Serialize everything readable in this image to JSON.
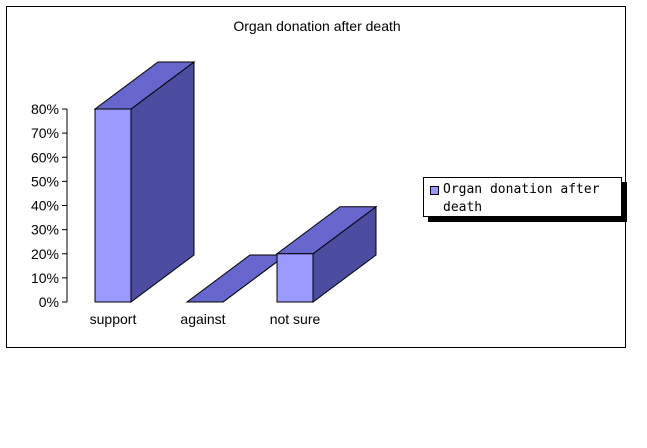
{
  "chart_data": {
    "type": "bar",
    "title": "Organ donation after death",
    "categories": [
      "support",
      "against",
      "not sure"
    ],
    "series": [
      {
        "name": "Organ donation after death",
        "values": [
          80,
          0,
          20
        ]
      }
    ],
    "ylim": [
      0,
      80
    ],
    "y_ticks": [
      "0%",
      "10%",
      "20%",
      "30%",
      "40%",
      "50%",
      "60%",
      "70%",
      "80%"
    ],
    "y_tick_values": [
      0,
      10,
      20,
      30,
      40,
      50,
      60,
      70,
      80
    ],
    "style": "3d-column",
    "grid": false,
    "legend_position": "right",
    "colors": {
      "front": "#9999ff",
      "top": "#6666cc",
      "side": "#4c4ca0",
      "outline": "#000000"
    }
  }
}
